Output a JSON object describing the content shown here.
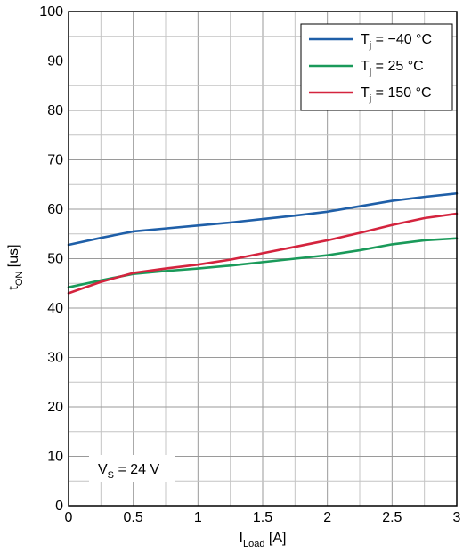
{
  "chart_data": {
    "type": "line",
    "title": "",
    "xlabel": {
      "main": "I",
      "sub": "Load",
      "unit": " [A]"
    },
    "ylabel": {
      "main": "t",
      "sub": "ON",
      "unit": " [us]"
    },
    "xlim": [
      0,
      3
    ],
    "ylim": [
      0,
      100
    ],
    "x_ticks": [
      0,
      0.5,
      1,
      1.5,
      2,
      2.5,
      3
    ],
    "x_tick_labels": [
      "0",
      "0.5",
      "1",
      "1.5",
      "2",
      "2.5",
      "3"
    ],
    "y_ticks": [
      0,
      10,
      20,
      30,
      40,
      50,
      60,
      70,
      80,
      90,
      100
    ],
    "y_tick_labels": [
      "0",
      "10",
      "20",
      "30",
      "40",
      "50",
      "60",
      "70",
      "80",
      "90",
      "100"
    ],
    "grid": true,
    "legend_position": "top-right",
    "series": [
      {
        "name": "T",
        "name_sub": "j",
        "name_rest": " = −40 °C",
        "color": "#1f5fa8",
        "x": [
          0,
          0.25,
          0.5,
          0.75,
          1,
          1.25,
          1.5,
          1.75,
          2,
          2.25,
          2.5,
          2.75,
          3
        ],
        "y": [
          52.8,
          54.2,
          55.5,
          56.1,
          56.7,
          57.3,
          58,
          58.7,
          59.5,
          60.6,
          61.7,
          62.5,
          63.2
        ]
      },
      {
        "name": "T",
        "name_sub": "j",
        "name_rest": " = 25 °C",
        "color": "#1a9a5a",
        "x": [
          0,
          0.25,
          0.5,
          0.75,
          1,
          1.25,
          1.5,
          1.75,
          2,
          2.25,
          2.5,
          2.75,
          3
        ],
        "y": [
          44.2,
          45.6,
          46.9,
          47.5,
          48,
          48.6,
          49.3,
          50,
          50.7,
          51.7,
          52.9,
          53.7,
          54.1
        ]
      },
      {
        "name": "T",
        "name_sub": "j",
        "name_rest": " = 150 °C",
        "color": "#d4243e",
        "x": [
          0,
          0.25,
          0.5,
          0.75,
          1,
          1.25,
          1.5,
          1.75,
          2,
          2.25,
          2.5,
          2.75,
          3
        ],
        "y": [
          43,
          45.3,
          47.1,
          48,
          48.8,
          49.8,
          51.1,
          52.4,
          53.7,
          55.2,
          56.8,
          58.2,
          59.1
        ]
      }
    ],
    "annotation": {
      "main": "V",
      "sub": "S",
      "rest": " = 24 V",
      "x": 0.03,
      "y": 3
    }
  }
}
